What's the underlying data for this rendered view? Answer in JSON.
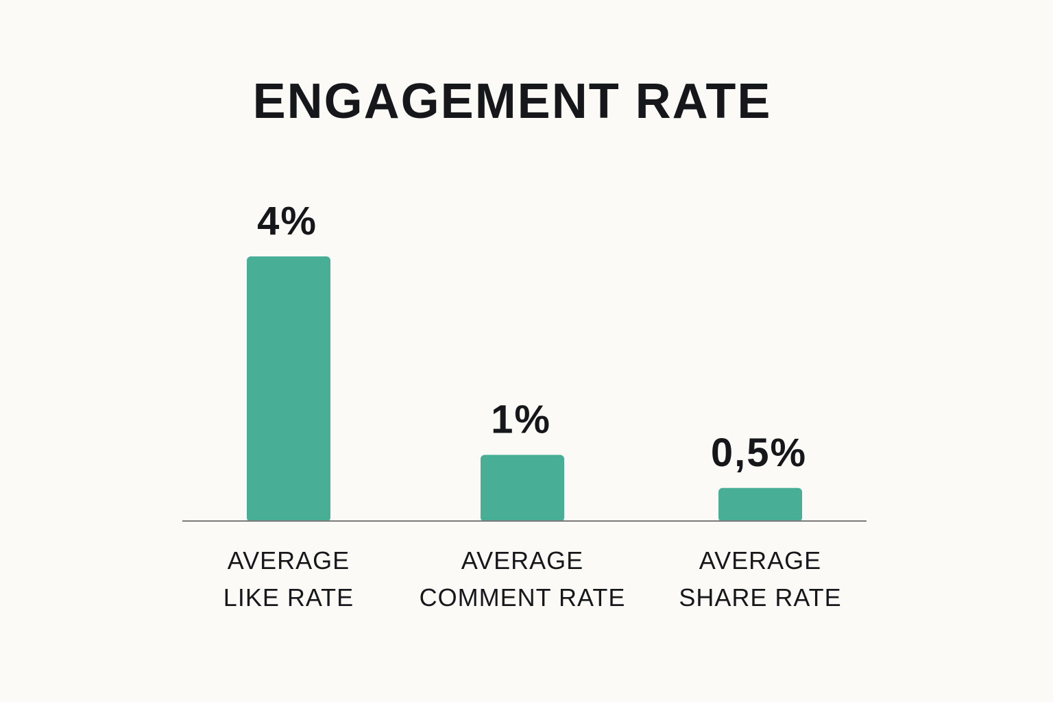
{
  "chart_data": {
    "type": "bar",
    "title": "ENGAGEMENT RATE",
    "categories": [
      [
        "AVERAGE",
        "LIKE RATE"
      ],
      [
        "AVERAGE",
        "COMMENT RATE"
      ],
      [
        "AVERAGE",
        "SHARE RATE"
      ]
    ],
    "values": [
      4,
      1,
      0.5
    ],
    "value_labels": [
      "4%",
      "1%",
      "0,5%"
    ],
    "unit": "%",
    "ylim": [
      0,
      4
    ],
    "grid": false,
    "bar_color": "#48ae96",
    "axis_color": "#7a7a7a"
  }
}
